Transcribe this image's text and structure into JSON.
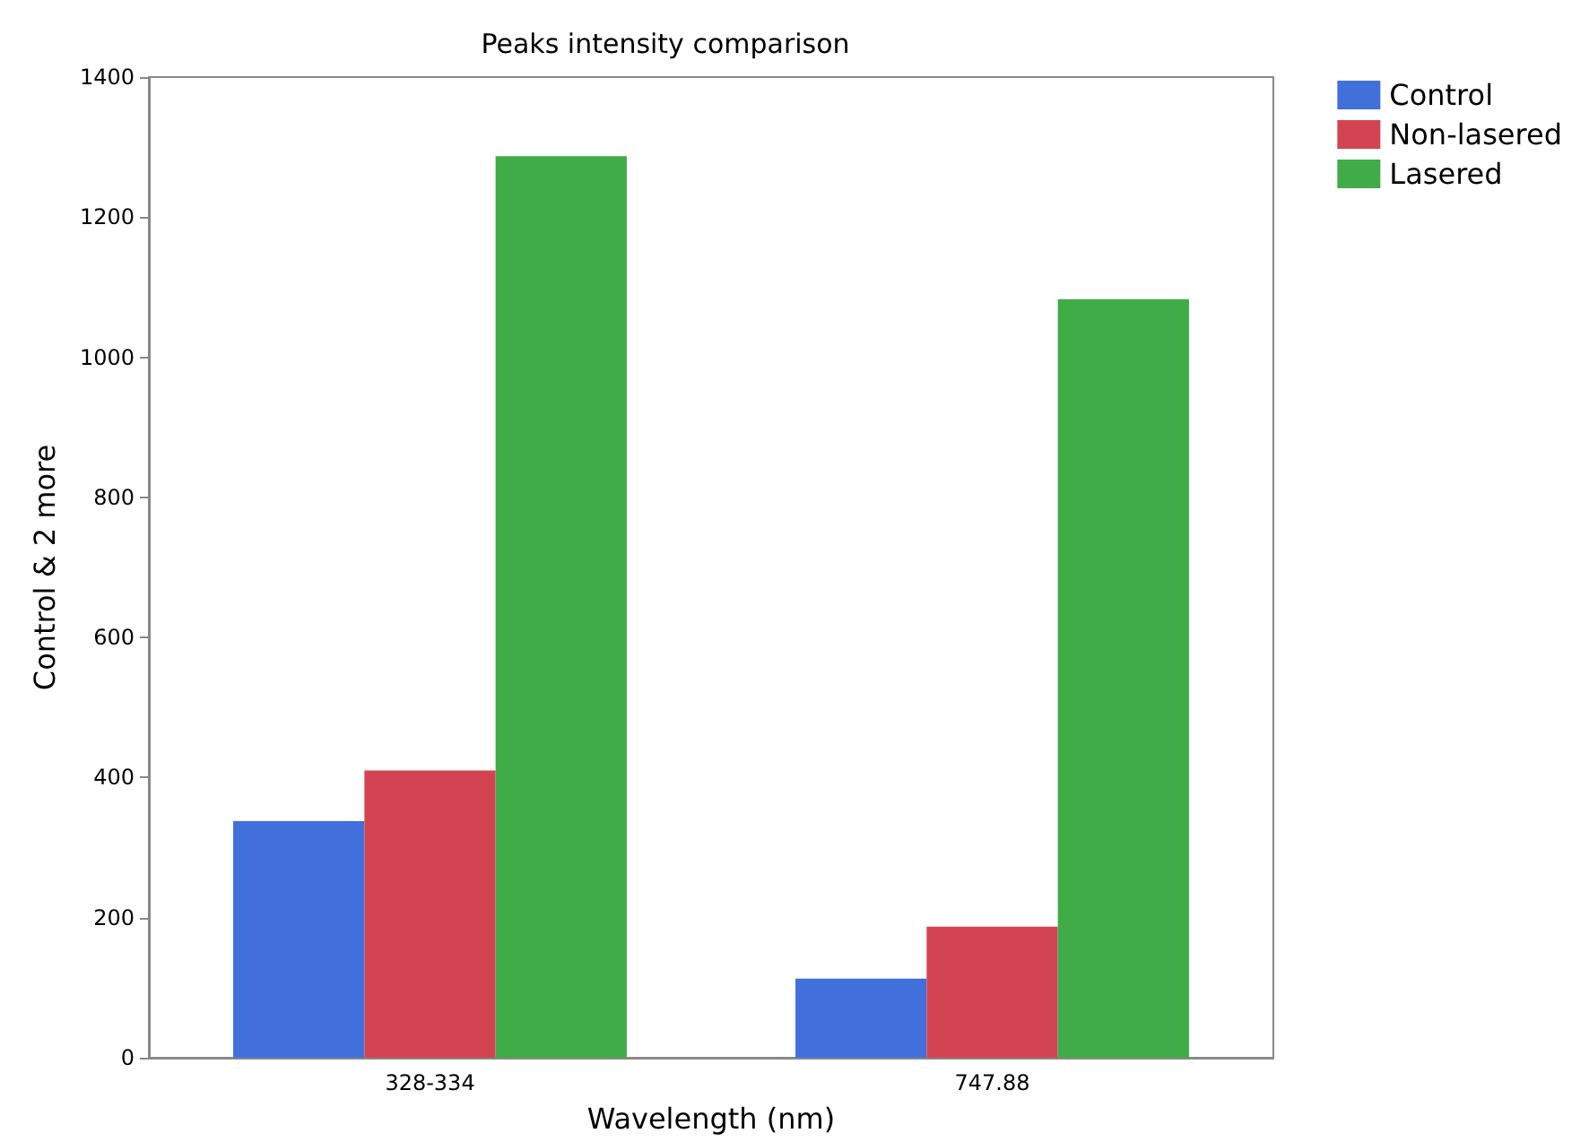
{
  "chart_data": {
    "type": "bar",
    "title": "Peaks intensity comparison",
    "xlabel": "Wavelength (nm)",
    "ylabel": "Control & 2 more",
    "categories": [
      "328-334",
      "747.88"
    ],
    "series": [
      {
        "name": "Control",
        "color": "#4170dc",
        "values": [
          338,
          113
        ]
      },
      {
        "name": "Non-lasered",
        "color": "#d34452",
        "values": [
          410,
          187
        ]
      },
      {
        "name": "Lasered",
        "color": "#3fac47",
        "values": [
          1287,
          1083
        ]
      }
    ],
    "ylim": [
      0,
      1400
    ],
    "yticks": [
      0,
      200,
      400,
      600,
      800,
      1000,
      1200,
      1400
    ],
    "grid": false,
    "legend": "top right"
  }
}
